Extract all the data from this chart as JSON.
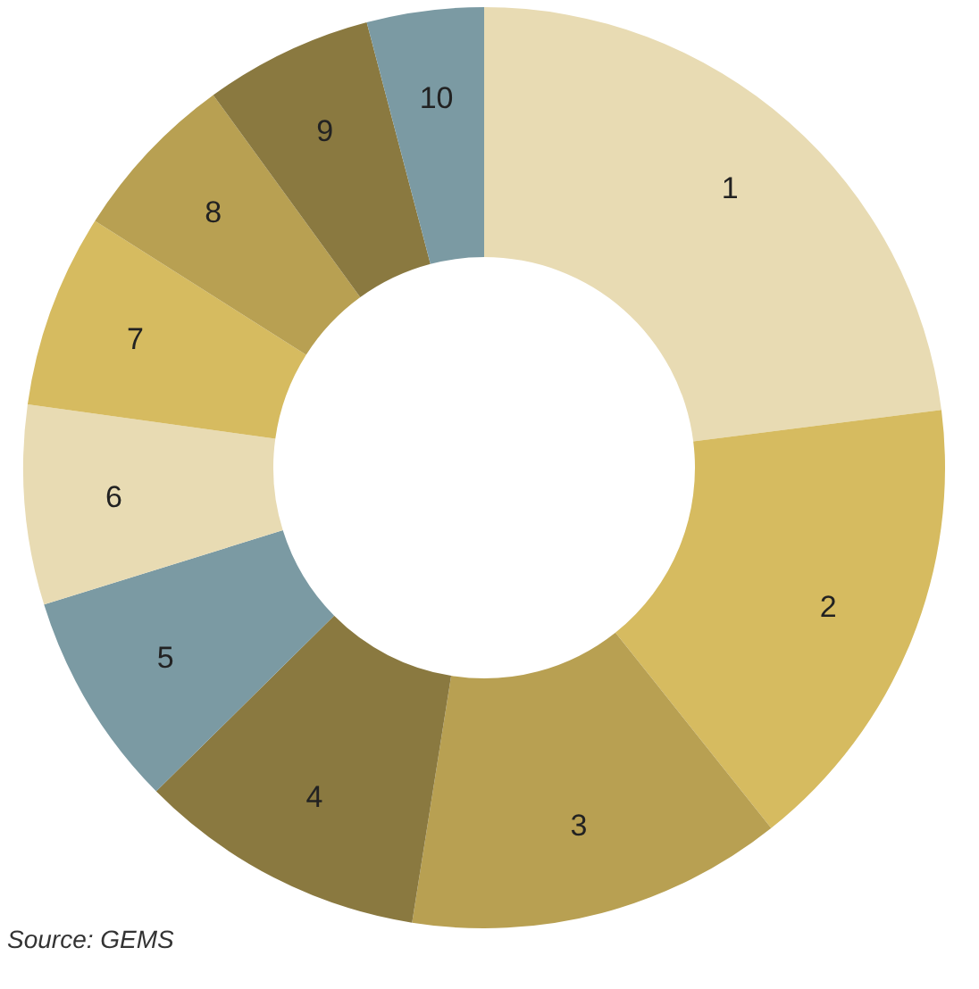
{
  "chart_data": {
    "type": "donut",
    "categories": [
      "1",
      "2",
      "3",
      "4",
      "5",
      "6",
      "7",
      "8",
      "9",
      "10"
    ],
    "values": [
      23.0,
      16.3,
      13.2,
      10.1,
      7.6,
      7.0,
      6.8,
      6.0,
      5.9,
      4.1
    ],
    "colors": [
      "#e8dbb3",
      "#d6bb60",
      "#b8a052",
      "#8a7940",
      "#7b9aa3",
      "#e8dbb3",
      "#d6bb60",
      "#b8a052",
      "#8a7940",
      "#7b9aa3"
    ],
    "annotations": [
      "Source: GEMS"
    ]
  }
}
